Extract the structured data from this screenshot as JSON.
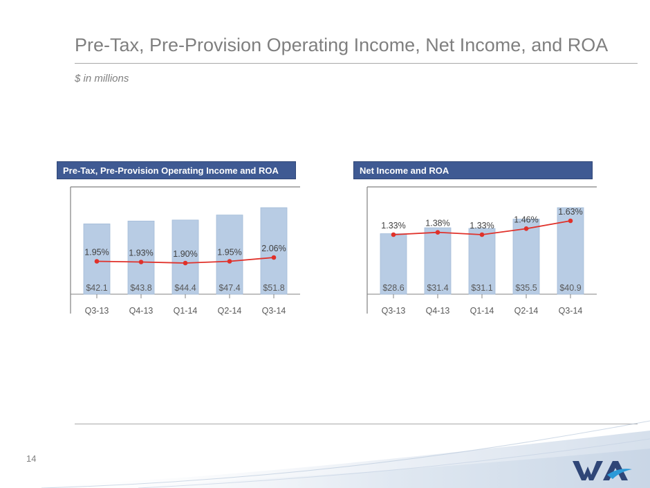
{
  "page": {
    "title": "Pre-Tax, Pre-Provision Operating Income, Net Income, and ROA",
    "subtitle": "$ in millions",
    "page_number": "14"
  },
  "colors": {
    "bar": "#b8cce4",
    "bar_stroke": "#a3bbd8",
    "line": "#e0312a",
    "header_bg": "#3f5a93",
    "axis": "#808080",
    "text": "#595959"
  },
  "chart_data": [
    {
      "type": "bar",
      "title": "Pre-Tax, Pre-Provision Operating Income and ROA",
      "categories": [
        "Q3-13",
        "Q4-13",
        "Q1-14",
        "Q2-14",
        "Q3-14"
      ],
      "series": [
        {
          "values": [
            42.1,
            43.8,
            44.4,
            47.4,
            51.8
          ],
          "labels": [
            "$42.1",
            "$43.8",
            "$44.4",
            "$47.4",
            "$51.8"
          ]
        },
        {
          "type": "line",
          "values": [
            1.95,
            1.93,
            1.9,
            1.95,
            2.06
          ],
          "labels": [
            "1.95%",
            "1.93%",
            "1.90%",
            "1.95%",
            "2.06%"
          ]
        }
      ],
      "xlabel": "",
      "ylabel": "",
      "grid": false
    },
    {
      "type": "bar",
      "title": "Net Income and ROA",
      "categories": [
        "Q3-13",
        "Q4-13",
        "Q1-14",
        "Q2-14",
        "Q3-14"
      ],
      "series": [
        {
          "values": [
            28.6,
            31.4,
            31.1,
            35.5,
            40.9
          ],
          "labels": [
            "$28.6",
            "$31.4",
            "$31.1",
            "$35.5",
            "$40.9"
          ]
        },
        {
          "type": "line",
          "values": [
            1.33,
            1.38,
            1.33,
            1.46,
            1.63
          ],
          "labels": [
            "1.33%",
            "1.38%",
            "1.33%",
            "1.46%",
            "1.63%"
          ]
        }
      ],
      "xlabel": "",
      "ylabel": "",
      "grid": false
    }
  ],
  "logo": {
    "name": "wa-logo-icon"
  }
}
